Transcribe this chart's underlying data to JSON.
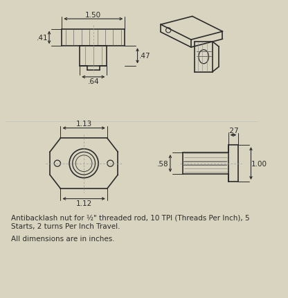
{
  "bg_color": "#d8d4c0",
  "line_color": "#2a2a2a",
  "dim_color": "#2a2a2a",
  "text_color": "#2a2a2a",
  "figsize": [
    4.16,
    4.31
  ],
  "dpi": 100,
  "description_line1": "Antibacklash nut for ½\" threaded rod, 10 TPI (Threads Per Inch), 5",
  "description_line2": "Starts, 2 turns Per Inch Travel.",
  "description_line3": "All dimensions are in inches."
}
